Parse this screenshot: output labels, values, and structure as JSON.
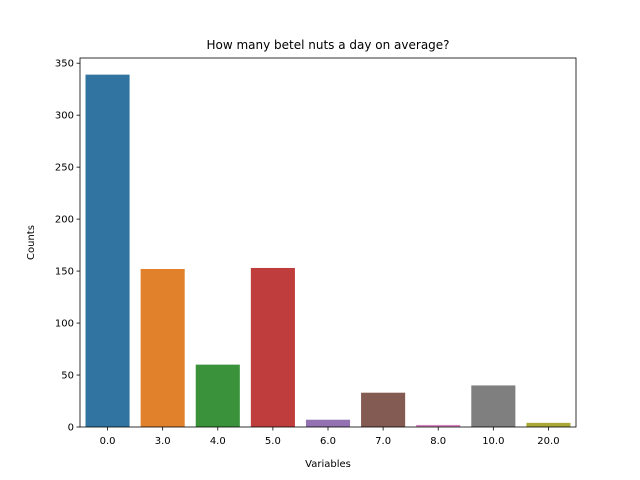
{
  "chart_data": {
    "type": "bar",
    "title": "How many betel nuts a day on average?",
    "xlabel": "Variables",
    "ylabel": "Counts",
    "categories": [
      "0.0",
      "3.0",
      "4.0",
      "5.0",
      "6.0",
      "7.0",
      "8.0",
      "10.0",
      "20.0"
    ],
    "values": [
      339,
      152,
      60,
      153,
      7,
      33,
      2,
      40,
      4
    ],
    "colors": [
      "#3274a1",
      "#e1812c",
      "#3a923a",
      "#c03d3e",
      "#9372b2",
      "#845b53",
      "#d684bd",
      "#7f7f7f",
      "#a9aa35"
    ],
    "ylim": [
      0,
      355
    ],
    "yticks": [
      0,
      50,
      100,
      150,
      200,
      250,
      300,
      350
    ],
    "grid": false,
    "legend": "none"
  }
}
